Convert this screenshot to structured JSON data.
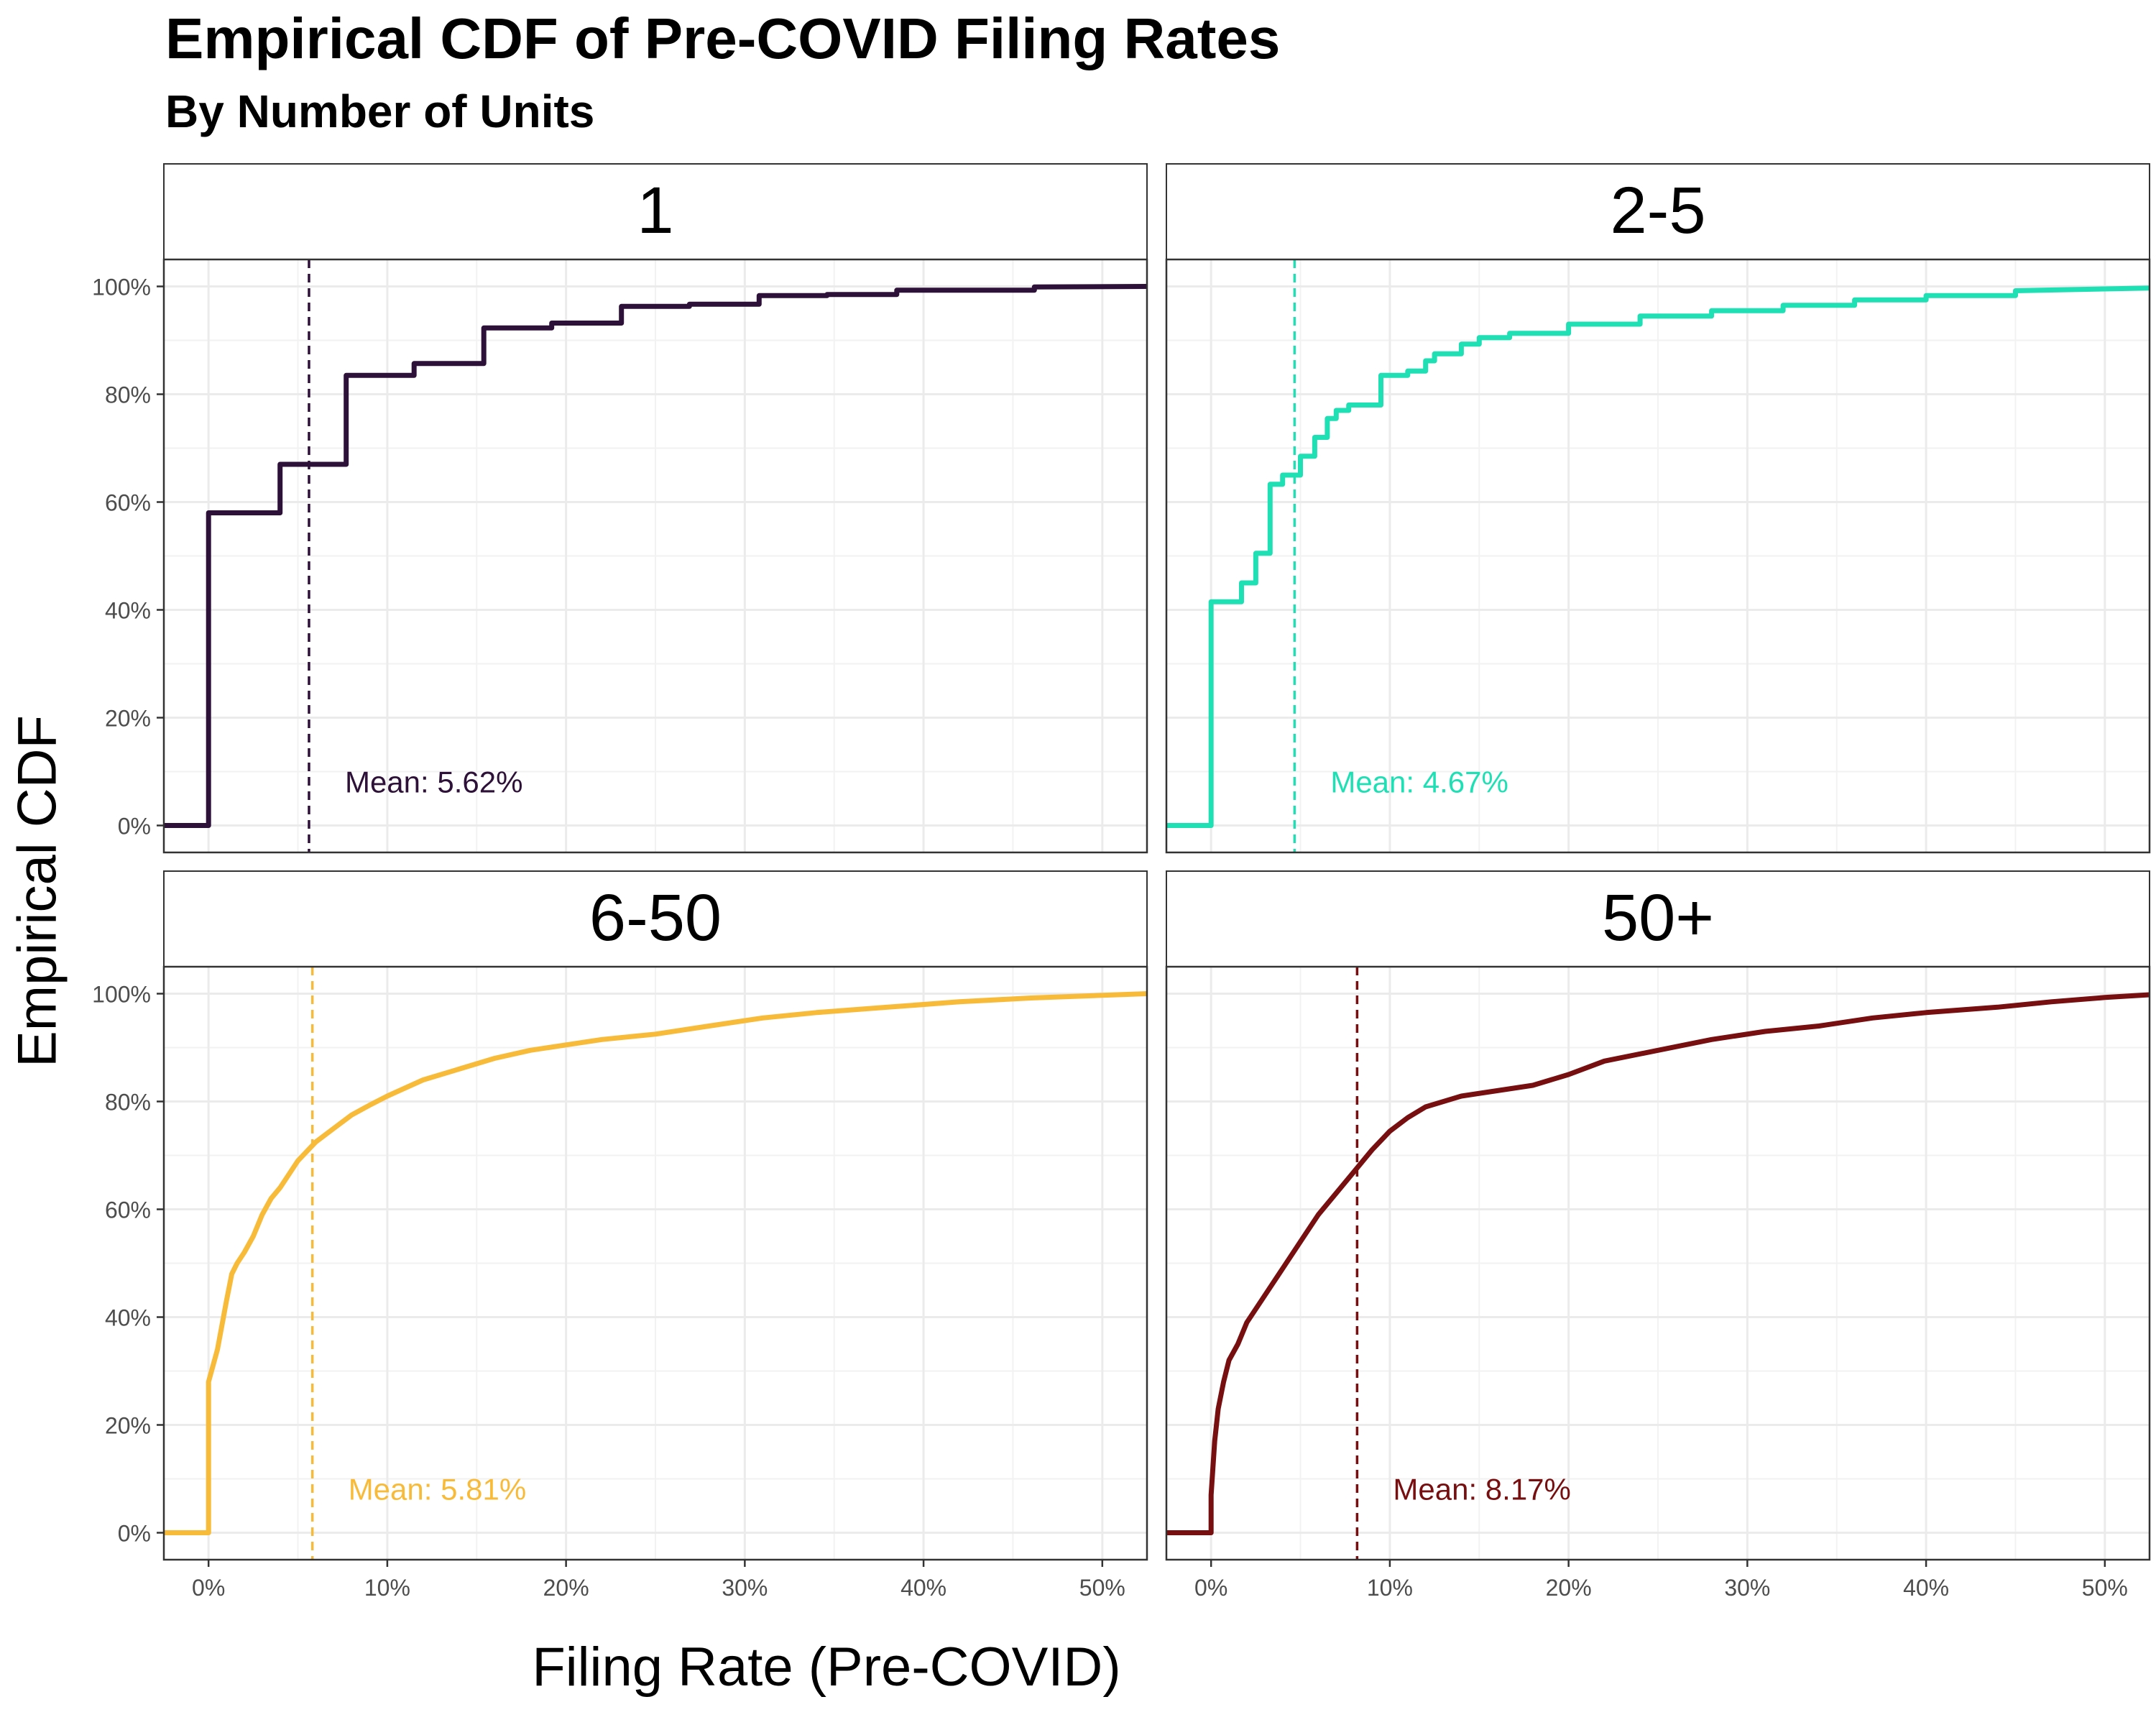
{
  "title": "Empirical CDF of Pre-COVID Filing Rates",
  "subtitle": "By Number of Units",
  "xlabel": "Filing Rate (Pre-COVID)",
  "ylabel": "Empirical CDF",
  "chart_data": {
    "type": "line",
    "layout": "facet_wrap_2x2",
    "title": "Empirical CDF of Pre-COVID Filing Rates",
    "subtitle": "By Number of Units",
    "xlabel": "Filing Rate (Pre-COVID)",
    "ylabel": "Empirical CDF",
    "xlim": [
      -2.5,
      52.5
    ],
    "ylim": [
      -5,
      105
    ],
    "x_ticks": [
      0,
      10,
      20,
      30,
      40,
      50
    ],
    "x_tick_labels": [
      "0%",
      "10%",
      "20%",
      "30%",
      "40%",
      "50%"
    ],
    "y_ticks": [
      0,
      20,
      40,
      60,
      80,
      100
    ],
    "y_tick_labels": [
      "0%",
      "20%",
      "40%",
      "60%",
      "80%",
      "100%"
    ],
    "grid": true,
    "legend": "none",
    "panels": [
      {
        "label": "1",
        "color": "#2D1138",
        "mean": 5.62,
        "mean_label": "Mean: 5.62%",
        "points": [
          [
            -2.5,
            0
          ],
          [
            0,
            0
          ],
          [
            0,
            58
          ],
          [
            4,
            58
          ],
          [
            4,
            67
          ],
          [
            7.7,
            67
          ],
          [
            7.7,
            83.5
          ],
          [
            11.5,
            83.5
          ],
          [
            11.5,
            85.7
          ],
          [
            15.4,
            85.7
          ],
          [
            15.4,
            92.3
          ],
          [
            19.2,
            92.3
          ],
          [
            19.2,
            93.2
          ],
          [
            23.1,
            93.2
          ],
          [
            23.1,
            96.3
          ],
          [
            26.9,
            96.3
          ],
          [
            26.9,
            96.7
          ],
          [
            30.8,
            96.7
          ],
          [
            30.8,
            98.3
          ],
          [
            34.6,
            98.3
          ],
          [
            34.6,
            98.5
          ],
          [
            38.5,
            98.5
          ],
          [
            38.5,
            99.3
          ],
          [
            46.2,
            99.3
          ],
          [
            46.2,
            99.9
          ],
          [
            52.5,
            100
          ]
        ]
      },
      {
        "label": "2-5",
        "color": "#1FE0B4",
        "mean": 4.67,
        "mean_label": "Mean: 4.67%",
        "points": [
          [
            -2.5,
            0
          ],
          [
            0,
            0
          ],
          [
            0,
            41.5
          ],
          [
            1.7,
            41.5
          ],
          [
            1.7,
            45
          ],
          [
            2.5,
            45
          ],
          [
            2.5,
            50.5
          ],
          [
            3.3,
            50.5
          ],
          [
            3.3,
            63.3
          ],
          [
            4,
            63.3
          ],
          [
            4,
            65
          ],
          [
            5,
            65
          ],
          [
            5,
            68.5
          ],
          [
            5.8,
            68.5
          ],
          [
            5.8,
            72
          ],
          [
            6.5,
            72
          ],
          [
            6.5,
            75.5
          ],
          [
            7,
            75.5
          ],
          [
            7,
            77
          ],
          [
            7.7,
            77
          ],
          [
            7.7,
            78
          ],
          [
            9.5,
            78
          ],
          [
            9.5,
            83.5
          ],
          [
            11,
            83.5
          ],
          [
            11,
            84.3
          ],
          [
            12,
            84.3
          ],
          [
            12,
            86.2
          ],
          [
            12.5,
            86.2
          ],
          [
            12.5,
            87.5
          ],
          [
            14,
            87.5
          ],
          [
            14,
            89.3
          ],
          [
            15,
            89.3
          ],
          [
            15,
            90.5
          ],
          [
            16.7,
            90.5
          ],
          [
            16.7,
            91.3
          ],
          [
            20,
            91.3
          ],
          [
            20,
            93
          ],
          [
            24,
            93
          ],
          [
            24,
            94.5
          ],
          [
            28,
            94.5
          ],
          [
            28,
            95.5
          ],
          [
            32,
            95.5
          ],
          [
            32,
            96.5
          ],
          [
            36,
            96.5
          ],
          [
            36,
            97.5
          ],
          [
            40,
            97.5
          ],
          [
            40,
            98.3
          ],
          [
            45,
            98.3
          ],
          [
            45,
            99.2
          ],
          [
            52.5,
            99.7
          ]
        ]
      },
      {
        "label": "6-50",
        "color": "#F8BB39",
        "mean": 5.81,
        "mean_label": "Mean: 5.81%",
        "points": [
          [
            -2.5,
            0
          ],
          [
            0,
            0
          ],
          [
            0,
            28
          ],
          [
            0.5,
            34
          ],
          [
            1,
            43
          ],
          [
            1.3,
            48
          ],
          [
            1.6,
            50
          ],
          [
            2,
            52
          ],
          [
            2.5,
            55
          ],
          [
            3,
            59
          ],
          [
            3.5,
            62
          ],
          [
            4,
            64
          ],
          [
            5,
            69
          ],
          [
            6,
            72.5
          ],
          [
            7,
            75
          ],
          [
            8,
            77.5
          ],
          [
            9,
            79.3
          ],
          [
            10,
            81
          ],
          [
            12,
            84
          ],
          [
            14,
            86
          ],
          [
            16,
            88
          ],
          [
            18,
            89.5
          ],
          [
            20,
            90.5
          ],
          [
            22,
            91.5
          ],
          [
            25,
            92.5
          ],
          [
            28,
            94
          ],
          [
            31,
            95.5
          ],
          [
            34,
            96.5
          ],
          [
            38,
            97.5
          ],
          [
            42,
            98.5
          ],
          [
            46,
            99.2
          ],
          [
            50,
            99.7
          ],
          [
            52.5,
            100
          ]
        ]
      },
      {
        "label": "50+",
        "color": "#770E0F",
        "mean": 8.17,
        "mean_label": "Mean: 8.17%",
        "points": [
          [
            -2.5,
            0
          ],
          [
            0,
            0
          ],
          [
            0,
            7
          ],
          [
            0.2,
            17
          ],
          [
            0.4,
            23
          ],
          [
            0.7,
            28
          ],
          [
            1,
            32
          ],
          [
            1.5,
            35
          ],
          [
            2,
            39
          ],
          [
            3,
            44
          ],
          [
            4,
            49
          ],
          [
            5,
            54
          ],
          [
            6,
            59
          ],
          [
            7,
            63
          ],
          [
            8,
            67
          ],
          [
            9,
            71
          ],
          [
            10,
            74.5
          ],
          [
            11,
            77
          ],
          [
            12,
            79
          ],
          [
            14,
            81
          ],
          [
            16,
            82
          ],
          [
            18,
            83
          ],
          [
            20,
            85
          ],
          [
            22,
            87.5
          ],
          [
            25,
            89.5
          ],
          [
            28,
            91.5
          ],
          [
            31,
            93
          ],
          [
            34,
            94
          ],
          [
            37,
            95.5
          ],
          [
            40,
            96.5
          ],
          [
            44,
            97.5
          ],
          [
            47,
            98.5
          ],
          [
            50,
            99.3
          ],
          [
            52.5,
            99.8
          ]
        ]
      }
    ]
  }
}
